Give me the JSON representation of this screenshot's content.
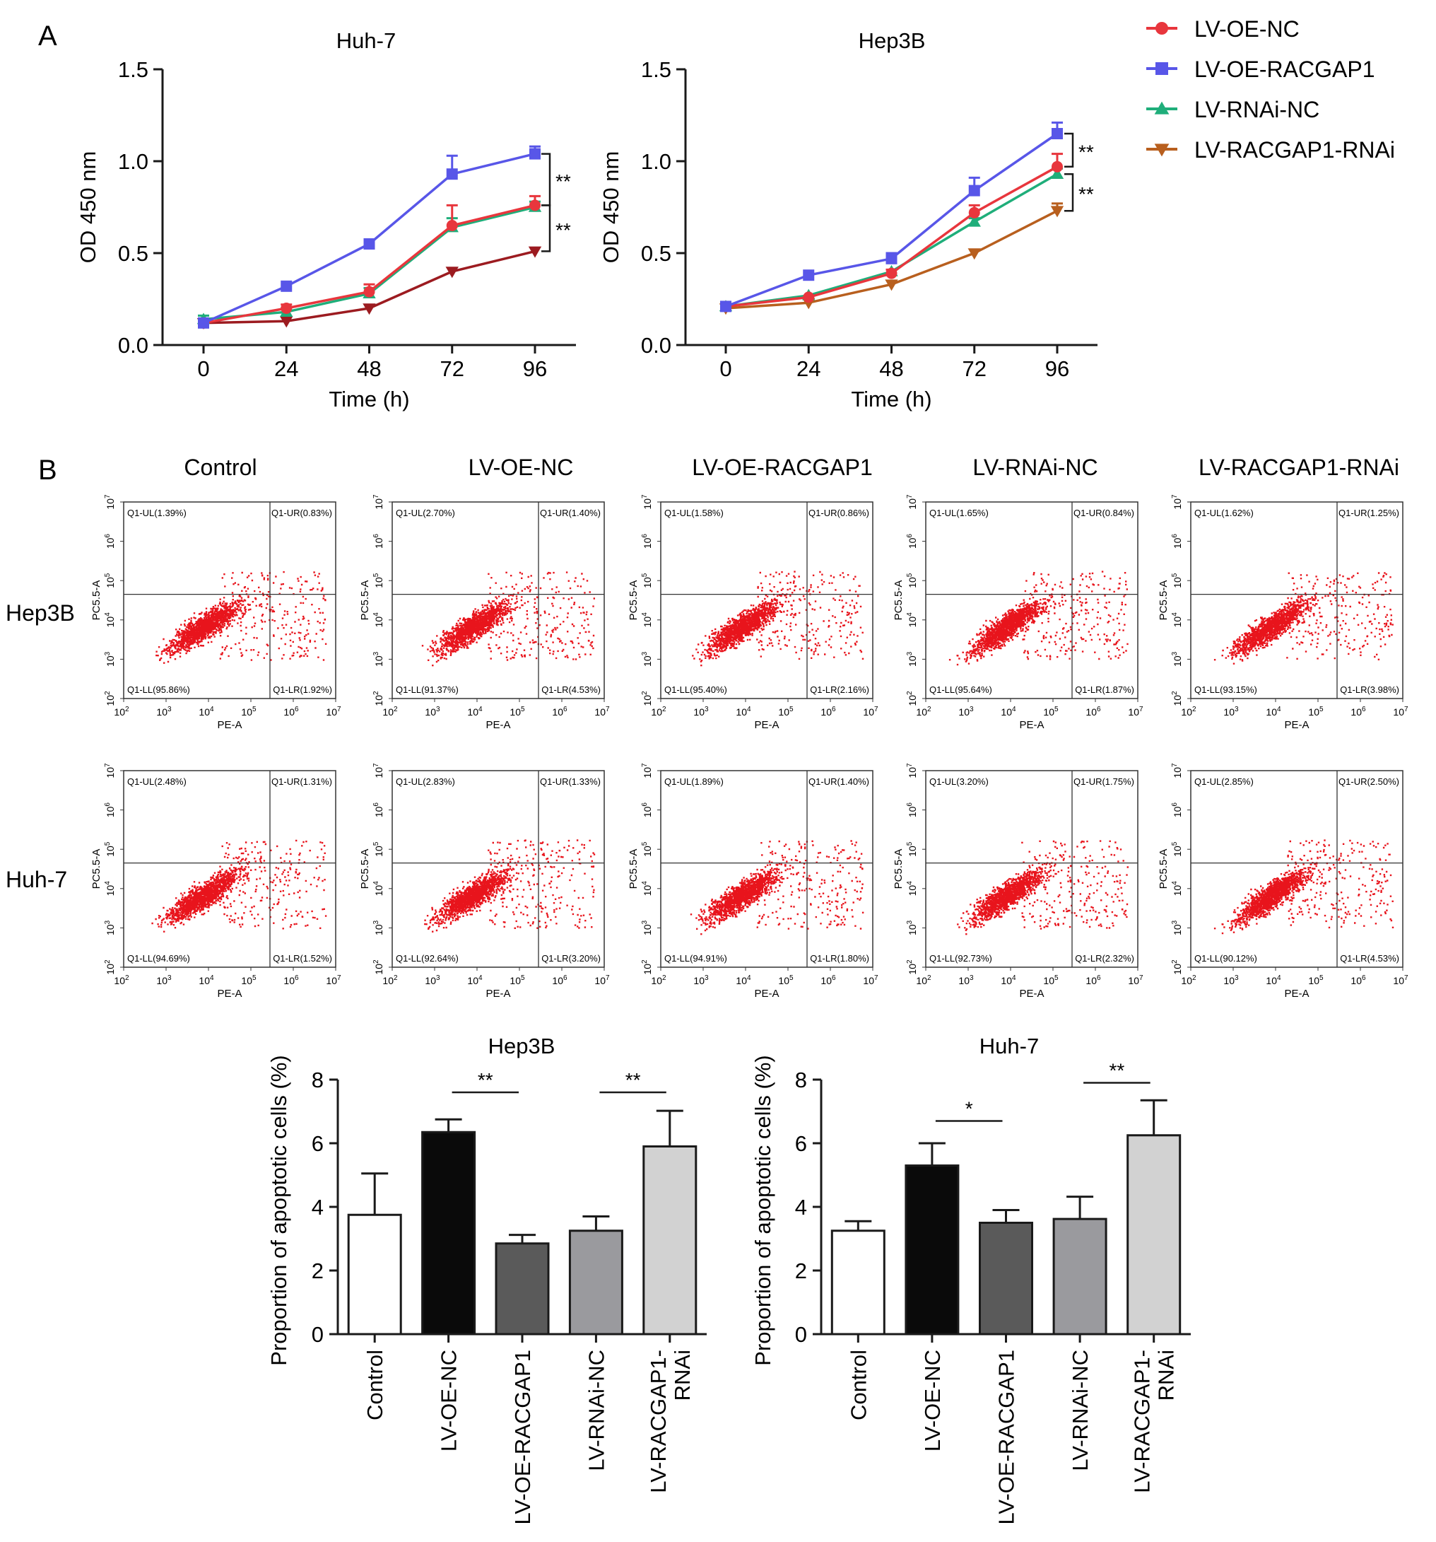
{
  "panel_labels": {
    "a": "A",
    "b": "B"
  },
  "colors": {
    "oe_nc": "#e8363d",
    "oe_racgap1": "#5856e8",
    "rnai_nc": "#1fae7a",
    "racgap1_rnai": "#b85f1e",
    "racgap1_rnai_huh7": "#9c1b20",
    "dots": "#e8141c",
    "axis": "#1a1a1a",
    "bar_control": "#ffffff",
    "bar_oe_nc": "#0a0a0a",
    "bar_oe_racgap1": "#5a5a5a",
    "bar_rnai_nc": "#9a9a9e",
    "bar_racgap1_rnai": "#d2d2d2"
  },
  "legend": {
    "items": [
      {
        "label": "LV-OE-NC",
        "color": "#e8363d",
        "marker": "circle"
      },
      {
        "label": "LV-OE-RACGAP1",
        "color": "#5856e8",
        "marker": "square"
      },
      {
        "label": "LV-RNAi-NC",
        "color": "#1fae7a",
        "marker": "triangle-up"
      },
      {
        "label": "LV-RACGAP1-RNAi",
        "color": "#b85f1e",
        "marker": "triangle-down"
      }
    ]
  },
  "flow": {
    "column_titles": [
      "Control",
      "LV-OE-NC",
      "LV-OE-RACGAP1",
      "LV-RNAi-NC",
      "LV-RACGAP1-RNAi"
    ],
    "row_labels": [
      "Hep3B",
      "Huh-7"
    ],
    "xlabel": "PE-A",
    "ylabel": "PC5.5-A",
    "tick_exponents": [
      "2",
      "3",
      "4",
      "5",
      "6",
      "7"
    ],
    "tick_base": "10",
    "quadrants": [
      [
        {
          "ul": "Q1-UL(1.39%)",
          "ur": "Q1-UR(0.83%)",
          "ll": "Q1-LL(95.86%)",
          "lr": "Q1-LR(1.92%)"
        },
        {
          "ul": "Q1-UL(2.70%)",
          "ur": "Q1-UR(1.40%)",
          "ll": "Q1-LL(91.37%)",
          "lr": "Q1-LR(4.53%)"
        },
        {
          "ul": "Q1-UL(1.58%)",
          "ur": "Q1-UR(0.86%)",
          "ll": "Q1-LL(95.40%)",
          "lr": "Q1-LR(2.16%)"
        },
        {
          "ul": "Q1-UL(1.65%)",
          "ur": "Q1-UR(0.84%)",
          "ll": "Q1-LL(95.64%)",
          "lr": "Q1-LR(1.87%)"
        },
        {
          "ul": "Q1-UL(1.62%)",
          "ur": "Q1-UR(1.25%)",
          "ll": "Q1-LL(93.15%)",
          "lr": "Q1-LR(3.98%)"
        }
      ],
      [
        {
          "ul": "Q1-UL(2.48%)",
          "ur": "Q1-UR(1.31%)",
          "ll": "Q1-LL(94.69%)",
          "lr": "Q1-LR(1.52%)"
        },
        {
          "ul": "Q1-UL(2.83%)",
          "ur": "Q1-UR(1.33%)",
          "ll": "Q1-LL(92.64%)",
          "lr": "Q1-LR(3.20%)"
        },
        {
          "ul": "Q1-UL(1.89%)",
          "ur": "Q1-UR(1.40%)",
          "ll": "Q1-LL(94.91%)",
          "lr": "Q1-LR(1.80%)"
        },
        {
          "ul": "Q1-UL(3.20%)",
          "ur": "Q1-UR(1.75%)",
          "ll": "Q1-LL(92.73%)",
          "lr": "Q1-LR(2.32%)"
        },
        {
          "ul": "Q1-UL(2.85%)",
          "ur": "Q1-UR(2.50%)",
          "ll": "Q1-LL(90.12%)",
          "lr": "Q1-LR(4.53%)"
        }
      ]
    ]
  },
  "chart_data": [
    {
      "id": "huh7-cck8",
      "type": "line",
      "title": "Huh-7",
      "xlabel": "Time (h)",
      "ylabel": "OD 450 nm",
      "x": [
        0,
        24,
        48,
        72,
        96
      ],
      "xticks": [
        "0",
        "24",
        "48",
        "72",
        "96"
      ],
      "ylim": [
        0,
        1.5
      ],
      "yticks": [
        "0.0",
        "0.5",
        "1.0",
        "1.5"
      ],
      "series": [
        {
          "name": "LV-RACGAP1-RNAi",
          "color": "#9c1b20",
          "marker": "triangle-down",
          "values": [
            0.12,
            0.13,
            0.2,
            0.4,
            0.51
          ],
          "errors": [
            0.01,
            0.01,
            0.01,
            0.01,
            0.01
          ]
        },
        {
          "name": "LV-RNAi-NC",
          "color": "#1fae7a",
          "marker": "triangle-up",
          "values": [
            0.14,
            0.18,
            0.28,
            0.64,
            0.75
          ],
          "errors": [
            0.02,
            0.02,
            0.03,
            0.05,
            0.03
          ]
        },
        {
          "name": "LV-OE-NC",
          "color": "#e8363d",
          "marker": "circle",
          "values": [
            0.12,
            0.2,
            0.29,
            0.65,
            0.76
          ],
          "errors": [
            0.01,
            0.02,
            0.04,
            0.11,
            0.05
          ]
        },
        {
          "name": "LV-OE-RACGAP1",
          "color": "#5856e8",
          "marker": "square",
          "values": [
            0.12,
            0.32,
            0.55,
            0.93,
            1.04
          ],
          "errors": [
            0.01,
            0.01,
            0.01,
            0.1,
            0.04
          ]
        }
      ],
      "significance": [
        {
          "from": 1.04,
          "to": 0.76,
          "label": "**"
        },
        {
          "from": 0.76,
          "to": 0.51,
          "label": "**"
        }
      ]
    },
    {
      "id": "hep3b-cck8",
      "type": "line",
      "title": "Hep3B",
      "xlabel": "Time (h)",
      "ylabel": "OD 450 nm",
      "x": [
        0,
        24,
        48,
        72,
        96
      ],
      "xticks": [
        "0",
        "24",
        "48",
        "72",
        "96"
      ],
      "ylim": [
        0,
        1.5
      ],
      "yticks": [
        "0.0",
        "0.5",
        "1.0",
        "1.5"
      ],
      "series": [
        {
          "name": "LV-RACGAP1-RNAi",
          "color": "#b85f1e",
          "marker": "triangle-down",
          "values": [
            0.2,
            0.23,
            0.33,
            0.5,
            0.73
          ],
          "errors": [
            0.01,
            0.01,
            0.01,
            0.01,
            0.04
          ]
        },
        {
          "name": "LV-RNAi-NC",
          "color": "#1fae7a",
          "marker": "triangle-up",
          "values": [
            0.21,
            0.27,
            0.4,
            0.67,
            0.93
          ],
          "errors": [
            0.01,
            0.01,
            0.01,
            0.02,
            0.03
          ]
        },
        {
          "name": "LV-OE-NC",
          "color": "#e8363d",
          "marker": "circle",
          "values": [
            0.21,
            0.26,
            0.39,
            0.72,
            0.97
          ],
          "errors": [
            0.01,
            0.01,
            0.02,
            0.04,
            0.07
          ]
        },
        {
          "name": "LV-OE-RACGAP1",
          "color": "#5856e8",
          "marker": "square",
          "values": [
            0.21,
            0.38,
            0.47,
            0.84,
            1.15
          ],
          "errors": [
            0.01,
            0.01,
            0.03,
            0.07,
            0.06
          ]
        }
      ],
      "significance": [
        {
          "from": 1.15,
          "to": 0.97,
          "label": "**"
        },
        {
          "from": 0.93,
          "to": 0.73,
          "label": "**"
        }
      ]
    },
    {
      "id": "hep3b-apoptosis",
      "type": "bar",
      "title": "Hep3B",
      "xlabel": "",
      "ylabel": "Proportion of apoptotic cells (%)",
      "categories": [
        "Control",
        "LV-OE-NC",
        "LV-OE-RACGAP1",
        "LV-RNAi-NC",
        "LV-RACGAP1-\nRNAi"
      ],
      "values": [
        3.75,
        6.35,
        2.85,
        3.25,
        5.9
      ],
      "errors": [
        1.3,
        0.4,
        0.27,
        0.45,
        1.12
      ],
      "ylim": [
        0,
        8
      ],
      "yticks": [
        "0",
        "2",
        "4",
        "6",
        "8"
      ],
      "significance": [
        {
          "i": 1,
          "j": 2,
          "level": 7.6,
          "label": "**"
        },
        {
          "i": 3,
          "j": 4,
          "level": 7.6,
          "label": "**"
        }
      ]
    },
    {
      "id": "huh7-apoptosis",
      "type": "bar",
      "title": "Huh-7",
      "xlabel": "",
      "ylabel": "Proportion of apoptotic cells (%)",
      "categories": [
        "Control",
        "LV-OE-NC",
        "LV-OE-RACGAP1",
        "LV-RNAi-NC",
        "LV-RACGAP1-\nRNAi"
      ],
      "values": [
        3.25,
        5.3,
        3.5,
        3.62,
        6.25
      ],
      "errors": [
        0.3,
        0.7,
        0.4,
        0.7,
        1.1
      ],
      "ylim": [
        0,
        8
      ],
      "yticks": [
        "0",
        "2",
        "4",
        "6",
        "8"
      ],
      "significance": [
        {
          "i": 1,
          "j": 2,
          "level": 6.7,
          "label": "*"
        },
        {
          "i": 3,
          "j": 4,
          "level": 7.9,
          "label": "**"
        }
      ]
    }
  ]
}
